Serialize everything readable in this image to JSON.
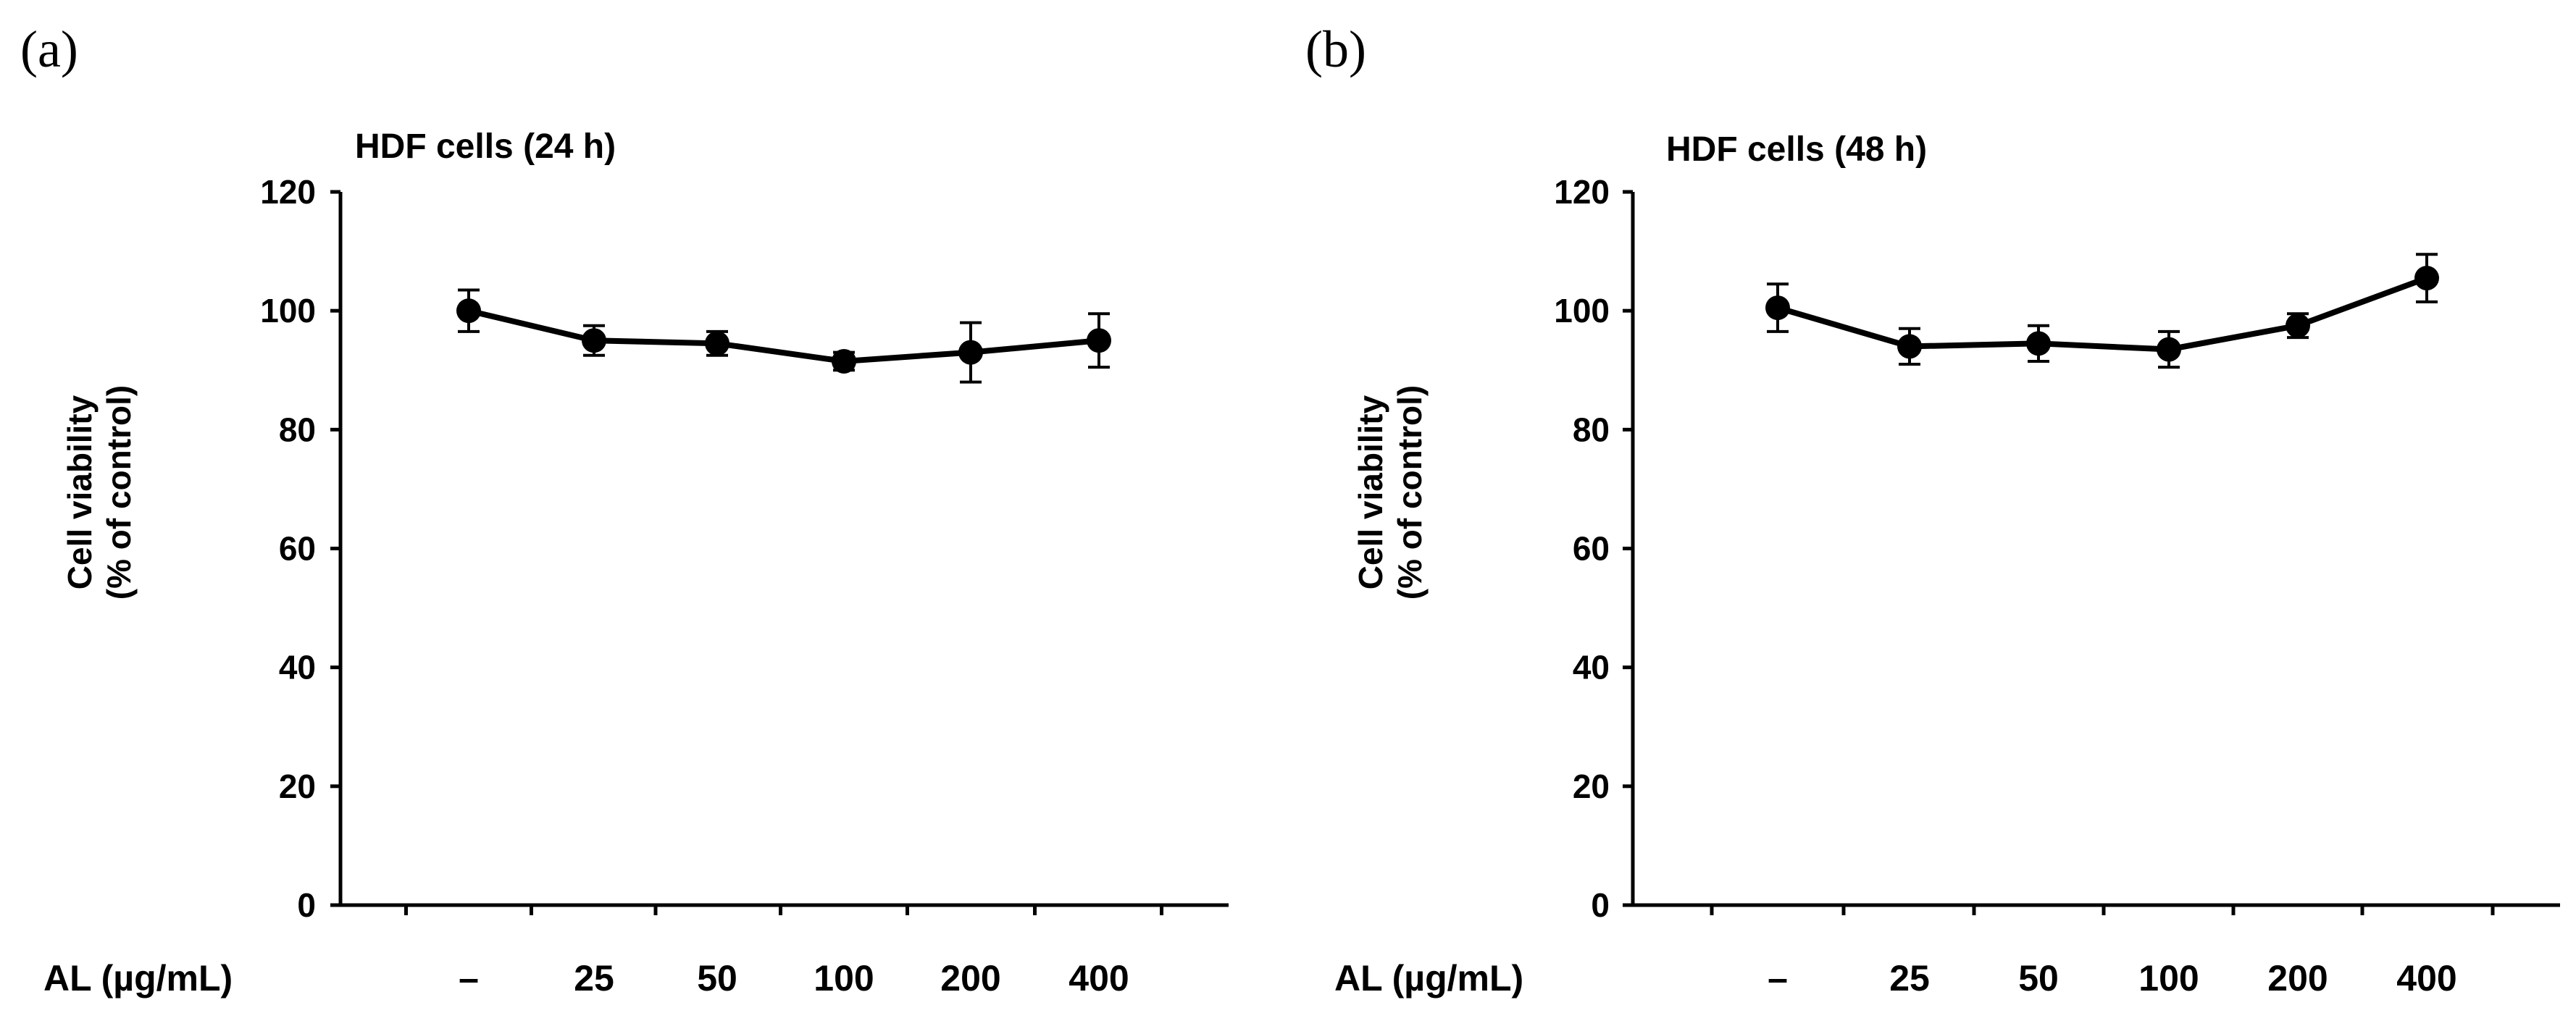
{
  "panels": [
    {
      "panel_label": "(a)",
      "chart_title": "HDF cells (24 h)",
      "ylabel_line1": "Cell viability",
      "ylabel_line2": "(% of control)",
      "xlabel": "AL (µg/mL)"
    },
    {
      "panel_label": "(b)",
      "chart_title": "HDF cells (48 h)",
      "ylabel_line1": "Cell viability",
      "ylabel_line2": "(% of control)",
      "xlabel": "AL (µg/mL)"
    }
  ],
  "chart_data": [
    {
      "type": "line",
      "title": "HDF cells (24 h)",
      "xlabel": "AL (µg/mL)",
      "ylabel": "Cell viability (% of control)",
      "categories": [
        "–",
        "25",
        "50",
        "100",
        "200",
        "400"
      ],
      "values": [
        100,
        95,
        94.5,
        91.5,
        93,
        95
      ],
      "errors": [
        3.5,
        2.5,
        2,
        1.5,
        5,
        4.5
      ],
      "ylim": [
        0,
        120
      ],
      "yticks": [
        0,
        20,
        40,
        60,
        80,
        100,
        120
      ],
      "grid": false,
      "color": "#000000"
    },
    {
      "type": "line",
      "title": "HDF cells (48 h)",
      "xlabel": "AL (µg/mL)",
      "ylabel": "Cell viability (% of control)",
      "categories": [
        "–",
        "25",
        "50",
        "100",
        "200",
        "400"
      ],
      "values": [
        100.5,
        94,
        94.5,
        93.5,
        97.5,
        105.5
      ],
      "errors": [
        4,
        3,
        3,
        3,
        2,
        4
      ],
      "ylim": [
        0,
        120
      ],
      "yticks": [
        0,
        20,
        40,
        60,
        80,
        100,
        120
      ],
      "grid": false,
      "color": "#000000"
    }
  ]
}
